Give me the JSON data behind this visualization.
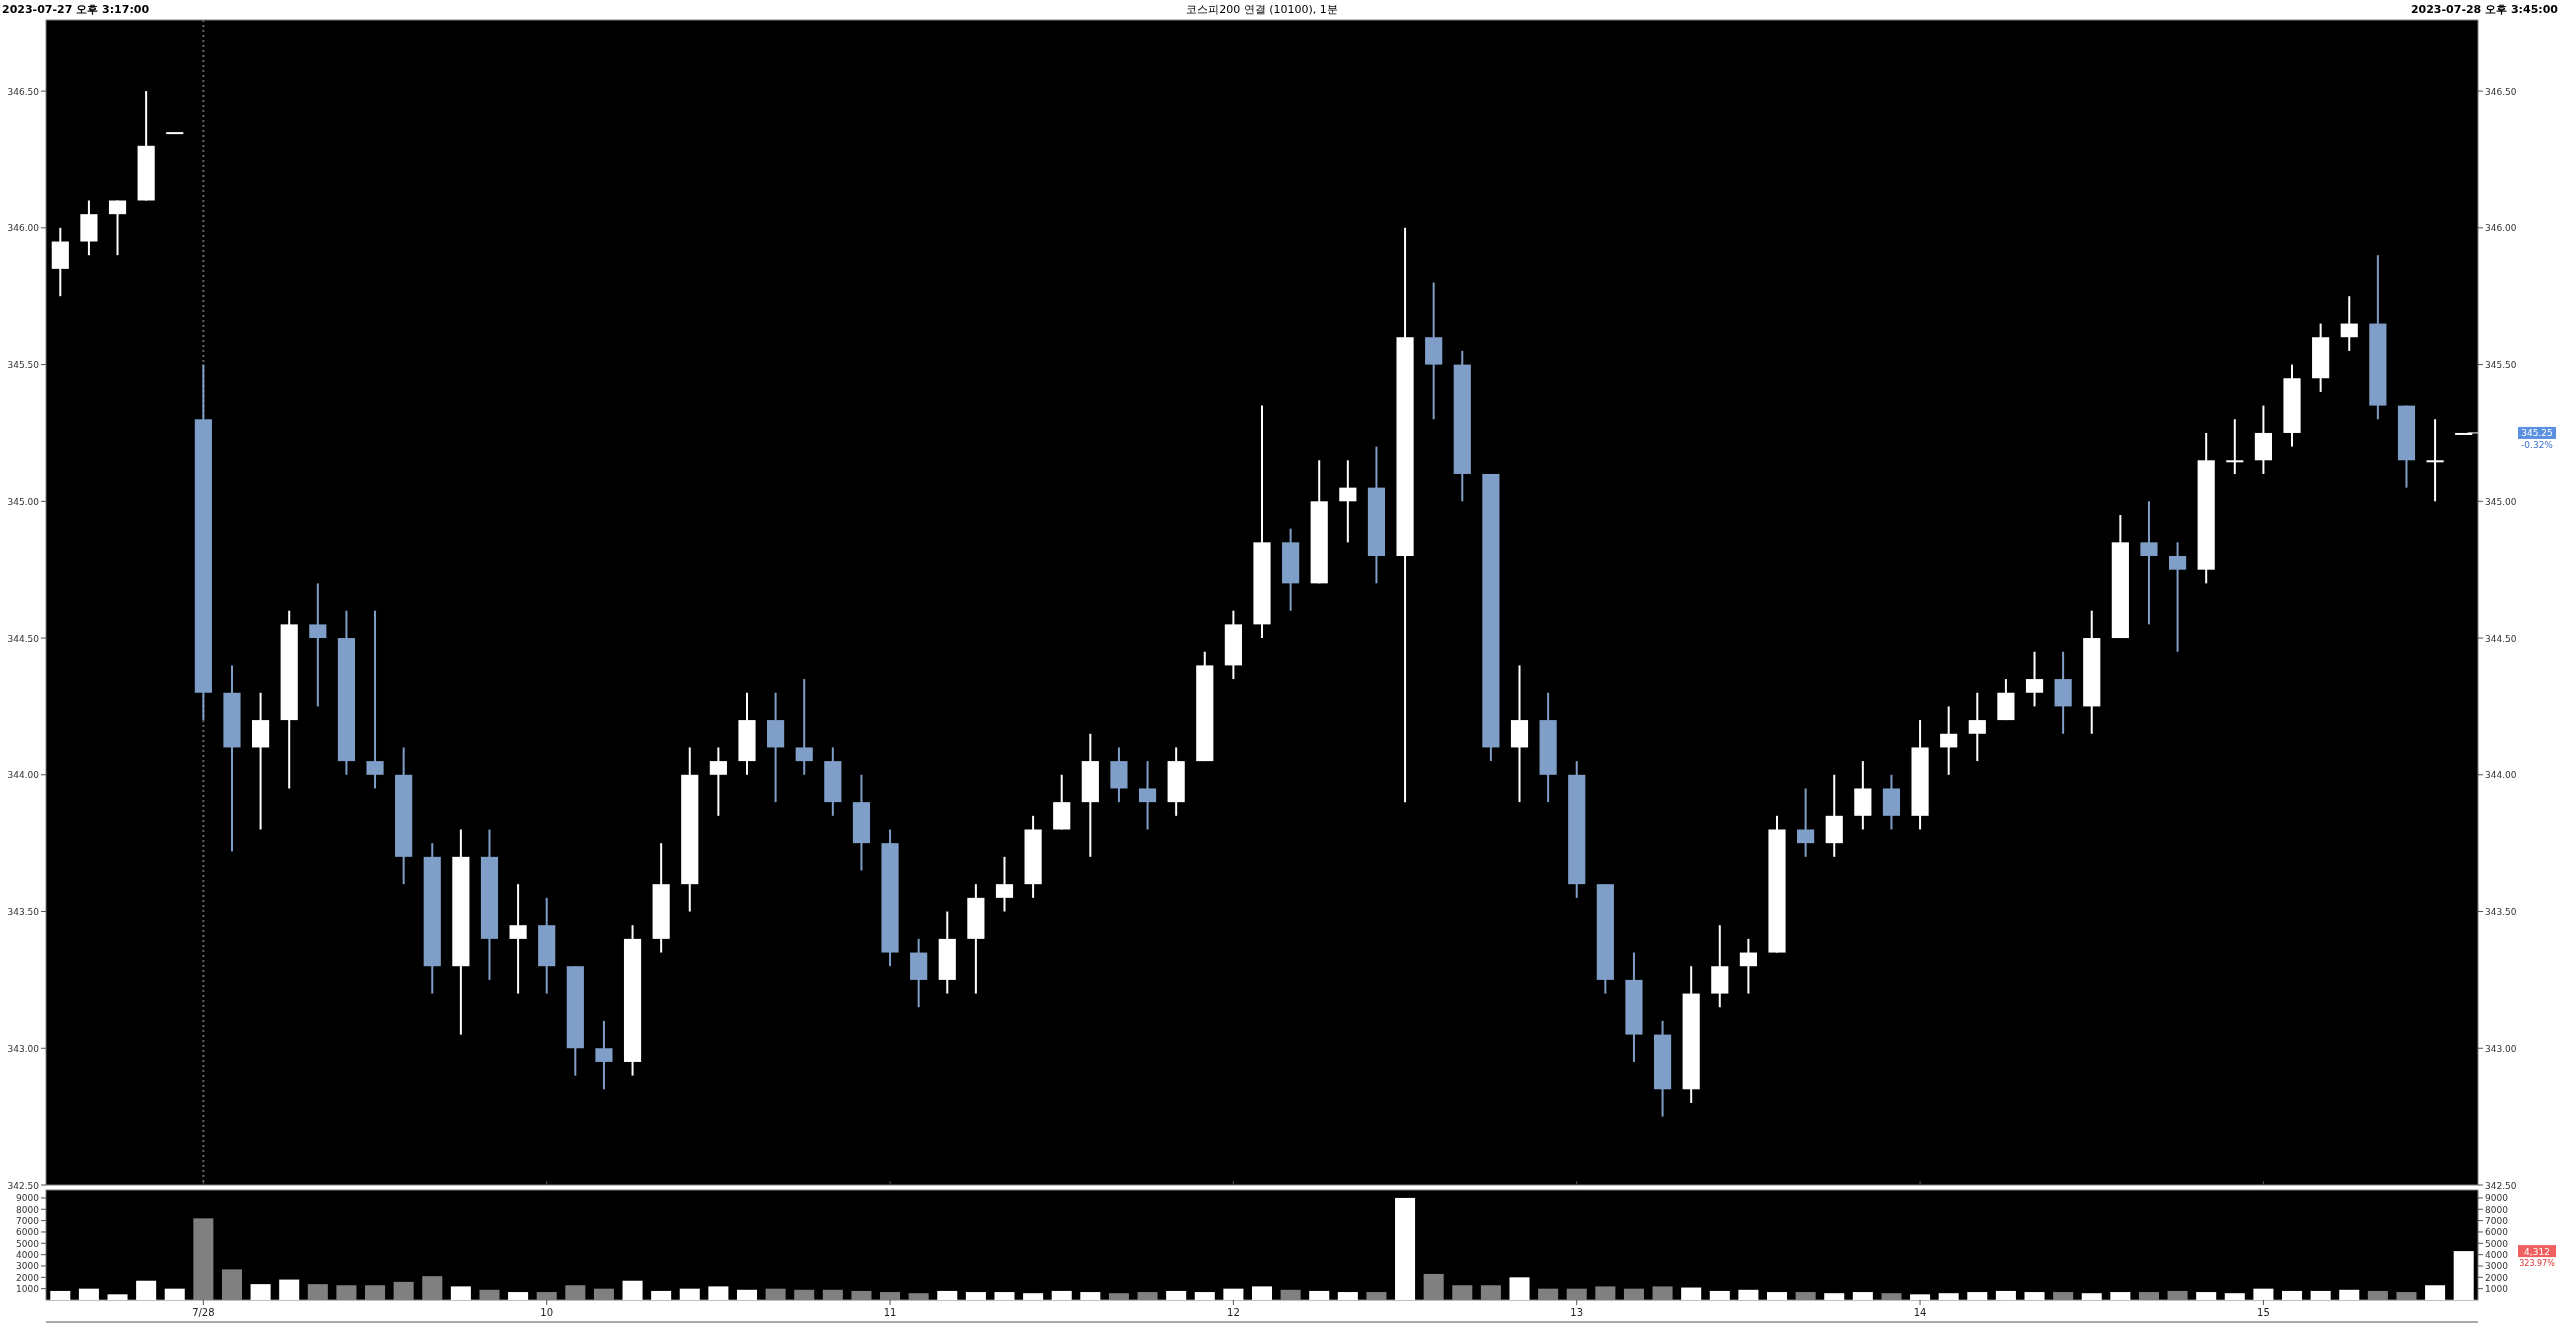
{
  "chart_data": [
    {
      "type": "candlestick",
      "title": "코스피200 연결 (10100), 1분",
      "annotations": [
        "2023-07-27 오후 3:17:00",
        "2023-07-28 오후 3:45:00",
        "345.25",
        "-0.32%"
      ],
      "categories": [
        null,
        null,
        null,
        null,
        null,
        "7/28",
        null,
        null,
        null,
        null,
        null,
        null,
        null,
        null,
        null,
        null,
        null,
        "10",
        null,
        null,
        null,
        null,
        null,
        null,
        null,
        null,
        null,
        null,
        null,
        "11",
        null,
        null,
        null,
        null,
        null,
        null,
        null,
        null,
        null,
        null,
        null,
        "12",
        null,
        null,
        null,
        null,
        null,
        null,
        null,
        null,
        null,
        null,
        null,
        "13",
        null,
        null,
        null,
        null,
        null,
        null,
        null,
        null,
        null,
        null,
        null,
        "14",
        null,
        null,
        null,
        null,
        null,
        null,
        null,
        null,
        null,
        null,
        null,
        "15",
        null,
        null,
        null,
        null,
        null,
        null,
        null
      ],
      "ohlc": [
        [
          345.85,
          346.0,
          345.75,
          345.95
        ],
        [
          345.95,
          346.1,
          345.9,
          346.05
        ],
        [
          346.05,
          346.1,
          345.9,
          346.1
        ],
        [
          346.1,
          346.5,
          346.1,
          346.3
        ],
        [
          346.35,
          346.35,
          346.35,
          346.35
        ],
        [
          345.3,
          345.5,
          344.2,
          344.3
        ],
        [
          344.3,
          344.4,
          343.72,
          344.1
        ],
        [
          344.1,
          344.3,
          343.8,
          344.2
        ],
        [
          344.2,
          344.6,
          343.95,
          344.55
        ],
        [
          344.55,
          344.7,
          344.25,
          344.5
        ],
        [
          344.5,
          344.6,
          344.0,
          344.05
        ],
        [
          344.05,
          344.6,
          343.95,
          344.0
        ],
        [
          344.0,
          344.1,
          343.6,
          343.7
        ],
        [
          343.7,
          343.75,
          343.2,
          343.3
        ],
        [
          343.3,
          343.8,
          343.05,
          343.7
        ],
        [
          343.7,
          343.8,
          343.25,
          343.4
        ],
        [
          343.4,
          343.6,
          343.2,
          343.45
        ],
        [
          343.45,
          343.55,
          343.2,
          343.3
        ],
        [
          343.3,
          343.3,
          342.9,
          343.0
        ],
        [
          343.0,
          343.1,
          342.85,
          342.95
        ],
        [
          342.95,
          343.45,
          342.9,
          343.4
        ],
        [
          343.4,
          343.75,
          343.35,
          343.6
        ],
        [
          343.6,
          344.1,
          343.5,
          344.0
        ],
        [
          344.0,
          344.1,
          343.85,
          344.05
        ],
        [
          344.05,
          344.3,
          344.0,
          344.2
        ],
        [
          344.2,
          344.3,
          343.9,
          344.1
        ],
        [
          344.1,
          344.35,
          344.0,
          344.05
        ],
        [
          344.05,
          344.1,
          343.85,
          343.9
        ],
        [
          343.9,
          344.0,
          343.65,
          343.75
        ],
        [
          343.75,
          343.8,
          343.3,
          343.35
        ],
        [
          343.35,
          343.4,
          343.15,
          343.25
        ],
        [
          343.25,
          343.5,
          343.2,
          343.4
        ],
        [
          343.4,
          343.6,
          343.2,
          343.55
        ],
        [
          343.55,
          343.7,
          343.5,
          343.6
        ],
        [
          343.6,
          343.85,
          343.55,
          343.8
        ],
        [
          343.8,
          344.0,
          343.8,
          343.9
        ],
        [
          343.9,
          344.15,
          343.7,
          344.05
        ],
        [
          344.05,
          344.1,
          343.9,
          343.95
        ],
        [
          343.95,
          344.05,
          343.8,
          343.9
        ],
        [
          343.9,
          344.1,
          343.85,
          344.05
        ],
        [
          344.05,
          344.45,
          344.05,
          344.4
        ],
        [
          344.4,
          344.6,
          344.35,
          344.55
        ],
        [
          344.55,
          345.35,
          344.5,
          344.85
        ],
        [
          344.85,
          344.9,
          344.6,
          344.7
        ],
        [
          344.7,
          345.15,
          344.7,
          345.0
        ],
        [
          345.0,
          345.15,
          344.85,
          345.05
        ],
        [
          345.05,
          345.2,
          344.7,
          344.8
        ],
        [
          344.8,
          346.0,
          343.9,
          345.6
        ],
        [
          345.6,
          345.8,
          345.3,
          345.5
        ],
        [
          345.5,
          345.55,
          345.0,
          345.1
        ],
        [
          345.1,
          345.1,
          344.05,
          344.1
        ],
        [
          344.1,
          344.4,
          343.9,
          344.2
        ],
        [
          344.2,
          344.3,
          343.9,
          344.0
        ],
        [
          344.0,
          344.05,
          343.55,
          343.6
        ],
        [
          343.6,
          343.6,
          343.2,
          343.25
        ],
        [
          343.25,
          343.35,
          342.95,
          343.05
        ],
        [
          343.05,
          343.1,
          342.75,
          342.85
        ],
        [
          342.85,
          343.3,
          342.8,
          343.2
        ],
        [
          343.2,
          343.45,
          343.15,
          343.3
        ],
        [
          343.3,
          343.4,
          343.2,
          343.35
        ],
        [
          343.35,
          343.85,
          343.35,
          343.8
        ],
        [
          343.8,
          343.95,
          343.7,
          343.75
        ],
        [
          343.75,
          344.0,
          343.7,
          343.85
        ],
        [
          343.85,
          344.05,
          343.8,
          343.95
        ],
        [
          343.95,
          344.0,
          343.8,
          343.85
        ],
        [
          343.85,
          344.2,
          343.8,
          344.1
        ],
        [
          344.1,
          344.25,
          344.0,
          344.15
        ],
        [
          344.15,
          344.3,
          344.05,
          344.2
        ],
        [
          344.2,
          344.35,
          344.2,
          344.3
        ],
        [
          344.3,
          344.45,
          344.25,
          344.35
        ],
        [
          344.35,
          344.45,
          344.15,
          344.25
        ],
        [
          344.25,
          344.6,
          344.15,
          344.5
        ],
        [
          344.5,
          344.95,
          344.5,
          344.85
        ],
        [
          344.85,
          345.0,
          344.55,
          344.8
        ],
        [
          344.8,
          344.85,
          344.45,
          344.75
        ],
        [
          344.75,
          345.25,
          344.7,
          345.15
        ],
        [
          345.15,
          345.3,
          345.1,
          345.15
        ],
        [
          345.15,
          345.35,
          345.1,
          345.25
        ],
        [
          345.25,
          345.5,
          345.2,
          345.45
        ],
        [
          345.45,
          345.65,
          345.4,
          345.6
        ],
        [
          345.6,
          345.75,
          345.55,
          345.65
        ],
        [
          345.65,
          345.9,
          345.3,
          345.35
        ],
        [
          345.35,
          345.35,
          345.05,
          345.15
        ],
        [
          345.15,
          345.3,
          345.0,
          345.15
        ],
        [
          345.25,
          345.25,
          345.25,
          345.25
        ]
      ],
      "colors": [
        "#ffffff",
        "#ffffff",
        "#ffffff",
        "#ffffff",
        "#ffffff",
        "#7f9fc8",
        "#7f9fc8",
        "#ffffff",
        "#ffffff",
        "#7f9fc8",
        "#7f9fc8",
        "#7f9fc8",
        "#7f9fc8",
        "#7f9fc8",
        "#ffffff",
        "#7f9fc8",
        "#ffffff",
        "#7f9fc8",
        "#7f9fc8",
        "#7f9fc8",
        "#ffffff",
        "#ffffff",
        "#ffffff",
        "#ffffff",
        "#ffffff",
        "#7f9fc8",
        "#7f9fc8",
        "#7f9fc8",
        "#7f9fc8",
        "#7f9fc8",
        "#7f9fc8",
        "#ffffff",
        "#ffffff",
        "#ffffff",
        "#ffffff",
        "#ffffff",
        "#ffffff",
        "#7f9fc8",
        "#7f9fc8",
        "#ffffff",
        "#ffffff",
        "#ffffff",
        "#ffffff",
        "#7f9fc8",
        "#ffffff",
        "#ffffff",
        "#7f9fc8",
        "#ffffff",
        "#7f9fc8",
        "#7f9fc8",
        "#7f9fc8",
        "#ffffff",
        "#7f9fc8",
        "#7f9fc8",
        "#7f9fc8",
        "#7f9fc8",
        "#7f9fc8",
        "#ffffff",
        "#ffffff",
        "#ffffff",
        "#ffffff",
        "#7f9fc8",
        "#ffffff",
        "#ffffff",
        "#7f9fc8",
        "#ffffff",
        "#ffffff",
        "#ffffff",
        "#ffffff",
        "#ffffff",
        "#7f9fc8",
        "#ffffff",
        "#ffffff",
        "#7f9fc8",
        "#7f9fc8",
        "#ffffff",
        "#ffffff",
        "#ffffff",
        "#ffffff",
        "#ffffff",
        "#ffffff",
        "#7f9fc8",
        "#7f9fc8",
        "#ffffff",
        "#ffffff"
      ],
      "ylim": [
        342.5,
        346.76
      ],
      "yticks": [
        {
          "value": 342.5,
          "label": "342.50"
        },
        {
          "value": 343,
          "label": "343.00"
        },
        {
          "value": 343.5,
          "label": "343.50"
        },
        {
          "value": 344,
          "label": "344.00"
        },
        {
          "value": 344.5,
          "label": "344.50"
        },
        {
          "value": 345,
          "label": "345.00"
        },
        {
          "value": 345.5,
          "label": "345.50"
        },
        {
          "value": 346,
          "label": "346.00"
        },
        {
          "value": 346.5,
          "label": "346.50"
        }
      ],
      "y2lim": [
        342.5,
        346.76
      ],
      "y2ticks": [
        {
          "value": 342.5,
          "label": "342.50"
        },
        {
          "value": 343,
          "label": "343.00"
        },
        {
          "value": 343.5,
          "label": "343.50"
        },
        {
          "value": 344,
          "label": "344.00"
        },
        {
          "value": 344.5,
          "label": "344.50"
        },
        {
          "value": 345,
          "label": "345.00"
        },
        {
          "value": 345.5,
          "label": "345.50"
        },
        {
          "value": 346,
          "label": "346.00"
        },
        {
          "value": 346.5,
          "label": "346.50"
        }
      ],
      "ref_lines": [
        {
          "axis": "x",
          "value": "7/28",
          "color": "#666666",
          "line_style": "dotted"
        }
      ],
      "tick_labels": "y"
    },
    {
      "type": "bar",
      "annotations": [
        "4,312",
        "323.97%"
      ],
      "categories": [
        null,
        null,
        null,
        null,
        null,
        "7/28",
        null,
        null,
        null,
        null,
        null,
        null,
        null,
        null,
        null,
        null,
        null,
        "10",
        null,
        null,
        null,
        null,
        null,
        null,
        null,
        null,
        null,
        null,
        null,
        "11",
        null,
        null,
        null,
        null,
        null,
        null,
        null,
        null,
        null,
        null,
        null,
        "12",
        null,
        null,
        null,
        null,
        null,
        null,
        null,
        null,
        null,
        null,
        null,
        "13",
        null,
        null,
        null,
        null,
        null,
        null,
        null,
        null,
        null,
        null,
        null,
        "14",
        null,
        null,
        null,
        null,
        null,
        null,
        null,
        null,
        null,
        null,
        null,
        "15",
        null,
        null,
        null,
        null,
        null,
        null,
        null
      ],
      "values": [
        800,
        1000,
        500,
        1700,
        1000,
        7200,
        2700,
        1400,
        1800,
        1400,
        1300,
        1300,
        1600,
        2100,
        1200,
        900,
        700,
        700,
        1300,
        1000,
        1700,
        800,
        1000,
        1200,
        900,
        1000,
        900,
        900,
        800,
        700,
        600,
        800,
        700,
        700,
        600,
        800,
        700,
        600,
        700,
        800,
        700,
        1000,
        1200,
        900,
        800,
        700,
        700,
        9000,
        2300,
        1300,
        1300,
        2000,
        1000,
        1000,
        1200,
        1000,
        1200,
        1100,
        800,
        900,
        700,
        700,
        600,
        700,
        600,
        500,
        600,
        700,
        800,
        700,
        700,
        600,
        700,
        700,
        800,
        700,
        600,
        1000,
        800,
        800,
        900,
        800,
        700,
        1300,
        4312
      ],
      "colors": [
        "#ffffff",
        "#ffffff",
        "#ffffff",
        "#ffffff",
        "#ffffff",
        "#808080",
        "#808080",
        "#ffffff",
        "#ffffff",
        "#808080",
        "#808080",
        "#808080",
        "#808080",
        "#808080",
        "#ffffff",
        "#808080",
        "#ffffff",
        "#808080",
        "#808080",
        "#808080",
        "#ffffff",
        "#ffffff",
        "#ffffff",
        "#ffffff",
        "#ffffff",
        "#808080",
        "#808080",
        "#808080",
        "#808080",
        "#808080",
        "#808080",
        "#ffffff",
        "#ffffff",
        "#ffffff",
        "#ffffff",
        "#ffffff",
        "#ffffff",
        "#808080",
        "#808080",
        "#ffffff",
        "#ffffff",
        "#ffffff",
        "#ffffff",
        "#808080",
        "#ffffff",
        "#ffffff",
        "#808080",
        "#ffffff",
        "#808080",
        "#808080",
        "#808080",
        "#ffffff",
        "#808080",
        "#808080",
        "#808080",
        "#808080",
        "#808080",
        "#ffffff",
        "#ffffff",
        "#ffffff",
        "#ffffff",
        "#808080",
        "#ffffff",
        "#ffffff",
        "#808080",
        "#ffffff",
        "#ffffff",
        "#ffffff",
        "#ffffff",
        "#ffffff",
        "#808080",
        "#ffffff",
        "#ffffff",
        "#808080",
        "#808080",
        "#ffffff",
        "#ffffff",
        "#ffffff",
        "#ffffff",
        "#ffffff",
        "#ffffff",
        "#808080",
        "#808080",
        "#ffffff",
        "#ffffff"
      ],
      "ylim": [
        0,
        9700
      ],
      "yticks": [
        1000,
        2000,
        3000,
        4000,
        5000,
        6000,
        7000,
        8000,
        9000
      ],
      "y2lim": [
        0,
        9700
      ],
      "y2ticks": [
        1000,
        2000,
        3000,
        4000,
        5000,
        6000,
        7000,
        8000,
        9000
      ]
    }
  ]
}
